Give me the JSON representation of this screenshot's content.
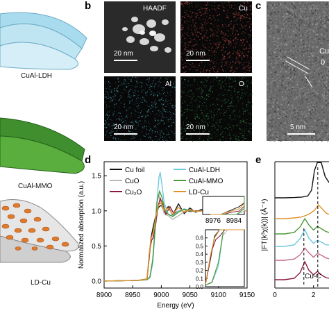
{
  "panels": {
    "a_labels": [
      "CuAl-LDH",
      "CuAl-MMO",
      "LD-Cu"
    ],
    "b": {
      "letter": "b",
      "tiles": [
        {
          "label": "HAADF",
          "scale": "20 nm",
          "tint": "#e8e8e8"
        },
        {
          "label": "Cu",
          "scale": "20 nm",
          "tint": "#c0504a"
        },
        {
          "label": "Al",
          "scale": "20 nm",
          "tint": "#4fb0c0"
        },
        {
          "label": "O",
          "scale": "20 nm",
          "tint": "#3a8f4a"
        }
      ]
    },
    "c": {
      "letter": "c",
      "label1": "Cu",
      "label2": "0",
      "scale": "5 nm"
    },
    "d": {
      "letter": "d"
    },
    "e": {
      "letter": "e",
      "annotation": "Cu-C"
    }
  },
  "chart_data": [
    {
      "type": "line",
      "panel": "d",
      "xlabel": "Energy (eV)",
      "ylabel": "Normalized absorption (a.u.)",
      "xlim": [
        8900,
        9150
      ],
      "ylim": [
        -0.1,
        1.7
      ],
      "xticks": [
        "8900",
        "8950",
        "9000",
        "9050",
        "9100",
        "9150"
      ],
      "yticks": [
        "0.0",
        "0.5",
        "1.0",
        "1.5"
      ],
      "grid": false,
      "legend_placement": "top",
      "series": [
        {
          "name": "Cu foil",
          "color": "#111111",
          "x": [
            8900,
            8960,
            8975,
            8979,
            8982,
            8986,
            8990,
            8995,
            9000,
            9005,
            9012,
            9020,
            9030,
            9040,
            9050,
            9060,
            9070,
            9080,
            9090,
            9100,
            9110,
            9120,
            9130,
            9140,
            9150
          ],
          "y": [
            0,
            0.01,
            0.03,
            0.35,
            0.62,
            0.78,
            0.92,
            1.05,
            1.08,
            0.98,
            1.06,
            0.94,
            1.1,
            0.96,
            1.04,
            0.98,
            1.02,
            0.97,
            1.01,
            0.99,
            1.0,
            1.0,
            0.99,
            1.0,
            1.0
          ]
        },
        {
          "name": "CuO",
          "color": "#b8b8b8",
          "x": [
            8900,
            8960,
            8975,
            8980,
            8985,
            8988,
            8992,
            8996,
            9000,
            9005,
            9012,
            9020,
            9030,
            9040,
            9050,
            9060,
            9070,
            9080,
            9090,
            9100,
            9110,
            9120,
            9130,
            9140,
            9150
          ],
          "y": [
            0,
            0.01,
            0.02,
            0.06,
            0.3,
            0.62,
            1.12,
            1.22,
            1.1,
            0.96,
            0.93,
            0.88,
            0.93,
            0.99,
            1.02,
            0.99,
            1.0,
            0.99,
            1.0,
            1.0,
            1.0,
            1.0,
            1.0,
            1.0,
            1.0
          ]
        },
        {
          "name": "Cu₂O",
          "color": "#8b1a3a",
          "x": [
            8900,
            8960,
            8975,
            8980,
            8983,
            8986,
            8990,
            8994,
            8998,
            9002,
            9008,
            9015,
            9022,
            9030,
            9040,
            9050,
            9060,
            9070,
            9080,
            9090,
            9100,
            9110,
            9120,
            9130,
            9140,
            9150
          ],
          "y": [
            0,
            0.01,
            0.03,
            0.45,
            0.58,
            0.62,
            0.8,
            1.05,
            1.18,
            1.1,
            0.95,
            1.06,
            0.96,
            1.0,
            1.02,
            0.99,
            1.0,
            1.0,
            1.0,
            1.0,
            1.0,
            1.0,
            1.0,
            1.0,
            1.0,
            1.0
          ]
        },
        {
          "name": "CuAl-LDH",
          "color": "#6ec9e0",
          "x": [
            8900,
            8960,
            8975,
            8980,
            8985,
            8989,
            8993,
            8996,
            8998,
            9001,
            9005,
            9012,
            9020,
            9030,
            9040,
            9050,
            9060,
            9070,
            9080,
            9090,
            9100,
            9110,
            9120,
            9130,
            9140,
            9150
          ],
          "y": [
            0,
            0.01,
            0.02,
            0.05,
            0.25,
            0.7,
            1.2,
            1.48,
            1.55,
            1.38,
            1.12,
            0.95,
            0.93,
            1.0,
            1.03,
            1.0,
            0.99,
            1.0,
            1.0,
            1.0,
            1.0,
            1.0,
            1.0,
            1.0,
            1.0,
            1.0
          ]
        },
        {
          "name": "CuAl-MMO",
          "color": "#4a9a36",
          "x": [
            8900,
            8960,
            8975,
            8980,
            8985,
            8989,
            8993,
            8997,
            9001,
            9006,
            9012,
            9020,
            9030,
            9040,
            9050,
            9060,
            9070,
            9080,
            9090,
            9100,
            9110,
            9120,
            9130,
            9140,
            9150
          ],
          "y": [
            0,
            0.01,
            0.02,
            0.05,
            0.3,
            0.72,
            1.15,
            1.28,
            1.2,
            1.02,
            0.95,
            0.92,
            0.98,
            1.02,
            1.0,
            0.99,
            1.0,
            1.0,
            1.0,
            1.0,
            1.0,
            1.0,
            1.0,
            1.0,
            1.0
          ]
        },
        {
          "name": "LD-Cu",
          "color": "#e0932c",
          "x": [
            8900,
            8960,
            8975,
            8979,
            8982,
            8986,
            8990,
            8995,
            9000,
            9005,
            9012,
            9020,
            9030,
            9040,
            9050,
            9060,
            9070,
            9080,
            9090,
            9100,
            9110,
            9120,
            9130,
            9140,
            9150
          ],
          "y": [
            0,
            0.01,
            0.03,
            0.4,
            0.6,
            0.7,
            0.9,
            1.08,
            1.12,
            1.0,
            1.04,
            0.95,
            1.05,
            0.98,
            1.02,
            0.99,
            1.0,
            0.99,
            1.0,
            1.0,
            1.0,
            1.0,
            1.0,
            1.0,
            1.0
          ]
        }
      ],
      "insets": [
        {
          "position": "top-right",
          "xlim": [
            8972,
            8988
          ],
          "xticks": [
            "8976",
            "8984"
          ],
          "ylim": [
            0.5,
            1.15
          ]
        },
        {
          "position": "bottom-right",
          "xlim": [
            8975,
            9005
          ],
          "ylim": [
            0.0,
            0.7
          ],
          "yticks": [
            "0.0",
            "0.1",
            "0.2",
            "0.3",
            "0.4",
            "0.5",
            "0.6"
          ]
        }
      ]
    },
    {
      "type": "line",
      "panel": "e",
      "ylabel": "|FT(k³χ(k))| (Å⁻⁴)",
      "xlim": [
        0,
        2.8
      ],
      "xticks": [
        "0",
        "2"
      ],
      "grid": false,
      "annotation": "Cu-C",
      "series": [
        {
          "color": "#111111",
          "x": [
            0,
            0.5,
            1.0,
            1.4,
            1.7,
            1.9,
            2.05,
            2.2,
            2.4,
            2.6,
            2.8
          ],
          "y": [
            0.0,
            0.0,
            0.02,
            0.05,
            0.12,
            0.5,
            1.8,
            2.6,
            2.3,
            1.4,
            1.0
          ]
        },
        {
          "color": "#e0932c",
          "x": [
            0,
            0.5,
            1.0,
            1.3,
            1.55,
            1.8,
            2.05,
            2.25,
            2.45,
            2.65,
            2.8
          ],
          "y": [
            0.0,
            0.0,
            0.05,
            0.1,
            0.2,
            0.35,
            0.6,
            1.0,
            0.7,
            0.4,
            0.3
          ]
        },
        {
          "color": "#4a9a36",
          "x": [
            0,
            0.5,
            1.0,
            1.3,
            1.55,
            1.75,
            2.0,
            2.2,
            2.45,
            2.65,
            2.8
          ],
          "y": [
            0.0,
            0.0,
            0.1,
            0.45,
            1.0,
            0.6,
            0.25,
            0.5,
            0.3,
            0.15,
            0.1
          ]
        },
        {
          "color": "#6ec9e0",
          "x": [
            0,
            0.5,
            1.0,
            1.3,
            1.55,
            1.75,
            2.0,
            2.2,
            2.45,
            2.65,
            2.8
          ],
          "y": [
            0.0,
            0.0,
            0.1,
            0.5,
            1.1,
            0.55,
            0.2,
            0.4,
            0.25,
            0.1,
            0.1
          ]
        },
        {
          "color": "#c66a8a",
          "x": [
            0,
            0.5,
            1.0,
            1.3,
            1.55,
            1.75,
            2.0,
            2.2,
            2.45,
            2.65,
            2.8
          ],
          "y": [
            0.0,
            0.0,
            0.08,
            0.35,
            0.8,
            0.5,
            0.2,
            0.45,
            0.3,
            0.15,
            0.1
          ]
        },
        {
          "color": "#8b1a3a",
          "x": [
            0,
            0.5,
            1.0,
            1.3,
            1.55,
            1.75,
            2.0,
            2.2,
            2.45,
            2.65,
            2.8
          ],
          "y": [
            0.0,
            0.0,
            0.1,
            0.5,
            1.3,
            0.7,
            0.35,
            0.6,
            0.3,
            0.15,
            0.1
          ]
        }
      ],
      "dashed_lines_x": [
        1.5,
        2.22
      ]
    }
  ]
}
